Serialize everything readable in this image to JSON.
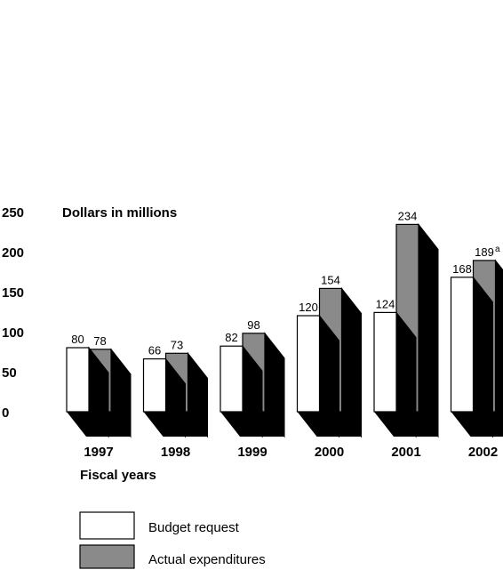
{
  "colors": {
    "budget": "#ffffff",
    "actual": "#8a8a8a",
    "depth": "#000000",
    "outline": "#000000"
  },
  "chart_data": {
    "type": "bar",
    "ylabel": "Dollars in millions",
    "xlabel": "Fiscal years",
    "ylim": [
      0,
      250
    ],
    "yticks": [
      0,
      50,
      100,
      150,
      200,
      250
    ],
    "categories": [
      "1997",
      "1998",
      "1999",
      "2000",
      "2001",
      "2002"
    ],
    "series": [
      {
        "name": "Budget request",
        "values": [
          80,
          66,
          82,
          120,
          124,
          168
        ],
        "labels": [
          "80",
          "66",
          "82",
          "120",
          "124",
          "168"
        ]
      },
      {
        "name": "Actual expenditures",
        "values": [
          78,
          73,
          98,
          154,
          234,
          189
        ],
        "labels": [
          "78",
          "73",
          "98",
          "154",
          "234",
          "189"
        ]
      }
    ],
    "annotations": [
      {
        "category": "2002",
        "series": "Actual expenditures",
        "note": "a"
      }
    ],
    "grid": false,
    "legend_position": "bottom-left"
  }
}
